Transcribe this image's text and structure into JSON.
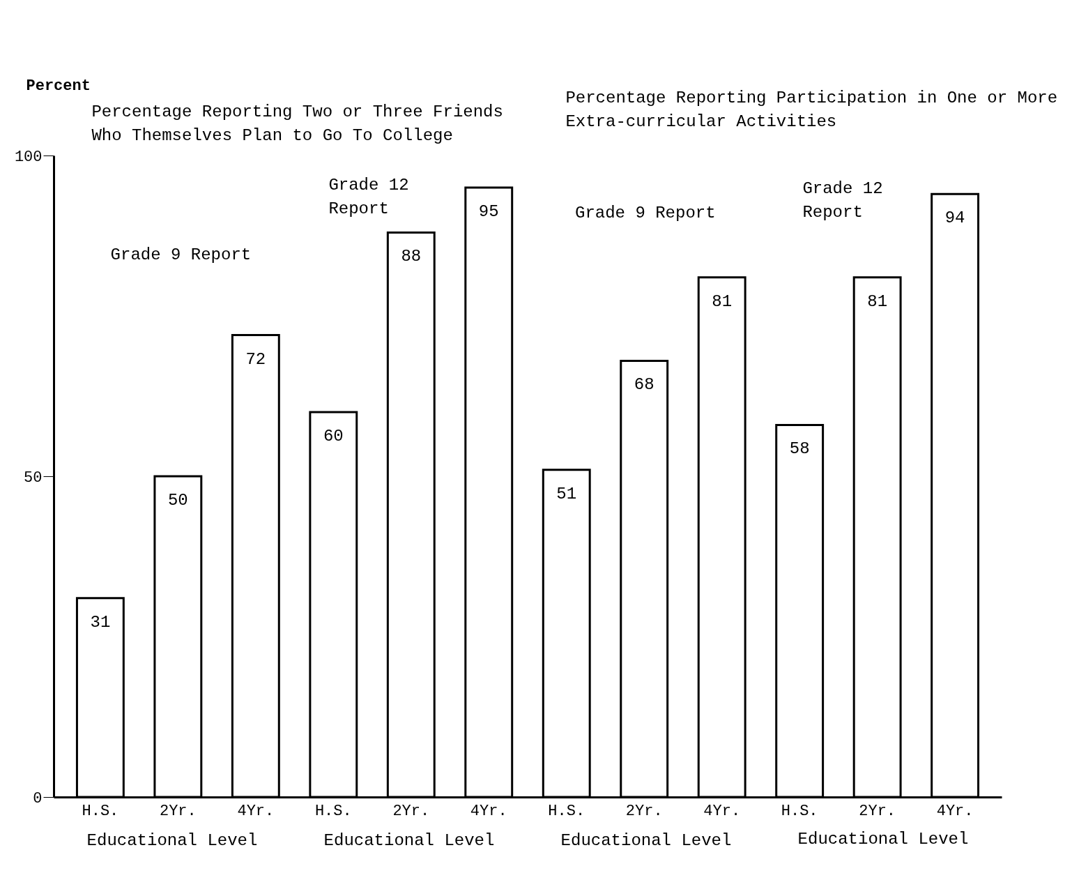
{
  "chart_data": {
    "type": "bar",
    "ylabel": "Percent",
    "categories": [
      "H.S.",
      "2Yr.",
      "4Yr.",
      "H.S.",
      "2Yr.",
      "4Yr.",
      "H.S.",
      "2Yr.",
      "4Yr.",
      "H.S.",
      "2Yr.",
      "4Yr."
    ],
    "values": [
      31,
      50,
      72,
      60,
      88,
      95,
      51,
      68,
      81,
      58,
      81,
      94
    ],
    "color": "#ffffff",
    "ylim": [
      0,
      100
    ],
    "yticks": [
      0,
      50,
      100
    ],
    "grid": false,
    "data_labels": true,
    "annotations": [
      "Percentage Reporting Two or Three Friends\nWho Themselves Plan to Go To College",
      "Percentage Reporting Participation in One or More\nExtra-curricular Activities",
      "Grade 9 Report",
      "Grade 12\nReport",
      "Grade 9 Report",
      "Grade 12\nReport",
      "Educational Level",
      "Educational Level",
      "Educational Level",
      "Educational Level"
    ]
  }
}
